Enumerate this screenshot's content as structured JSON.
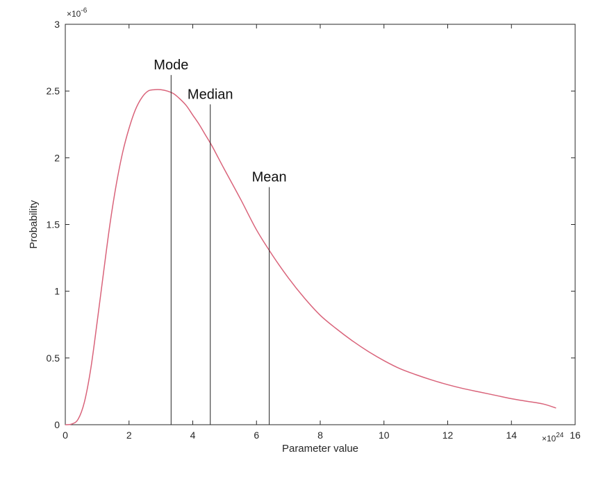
{
  "chart_data": {
    "type": "line",
    "title": "",
    "xlabel": "Parameter value",
    "ylabel": "Probability",
    "x_exponent_label": "×10",
    "x_exponent_power": "24",
    "y_exponent_label": "×10",
    "y_exponent_power": "-6",
    "xlim": [
      0,
      16
    ],
    "ylim": [
      0,
      3
    ],
    "xticks": [
      0,
      2,
      4,
      6,
      8,
      10,
      12,
      14,
      16
    ],
    "xtick_labels": [
      "0",
      "2",
      "4",
      "6",
      "8",
      "10",
      "12",
      "14",
      "16"
    ],
    "yticks": [
      0,
      0.5,
      1,
      1.5,
      2,
      2.5,
      3
    ],
    "ytick_labels": [
      "0",
      "0.5",
      "1",
      "1.5",
      "2",
      "2.5",
      "3"
    ],
    "grid": false,
    "series": [
      {
        "color": "#d9637a",
        "x": [
          0,
          0.2,
          0.4,
          0.6,
          0.8,
          1.0,
          1.2,
          1.4,
          1.6,
          1.8,
          2.0,
          2.2,
          2.4,
          2.6,
          2.8,
          3.0,
          3.2,
          3.4,
          3.6,
          3.8,
          4.0,
          4.2,
          4.4,
          4.6,
          4.8,
          5.0,
          5.5,
          6.0,
          6.5,
          7.0,
          7.5,
          8.0,
          8.5,
          9.0,
          9.5,
          10.0,
          10.5,
          11.0,
          11.5,
          12.0,
          12.5,
          13.0,
          13.5,
          14.0,
          14.5,
          15.0,
          15.4
        ],
        "y": [
          0,
          0.005,
          0.04,
          0.17,
          0.42,
          0.77,
          1.14,
          1.5,
          1.8,
          2.04,
          2.22,
          2.36,
          2.45,
          2.5,
          2.51,
          2.51,
          2.5,
          2.48,
          2.44,
          2.39,
          2.32,
          2.25,
          2.17,
          2.09,
          2.0,
          1.91,
          1.69,
          1.46,
          1.27,
          1.1,
          0.95,
          0.82,
          0.72,
          0.63,
          0.55,
          0.48,
          0.42,
          0.375,
          0.335,
          0.3,
          0.27,
          0.245,
          0.22,
          0.195,
          0.175,
          0.155,
          0.125
        ]
      }
    ],
    "annotations": [
      {
        "label": "Mode",
        "x": 3.32,
        "y_top": 2.62
      },
      {
        "label": "Median",
        "x": 4.55,
        "y_top": 2.4
      },
      {
        "label": "Mean",
        "x": 6.4,
        "y_top": 1.78
      }
    ]
  }
}
